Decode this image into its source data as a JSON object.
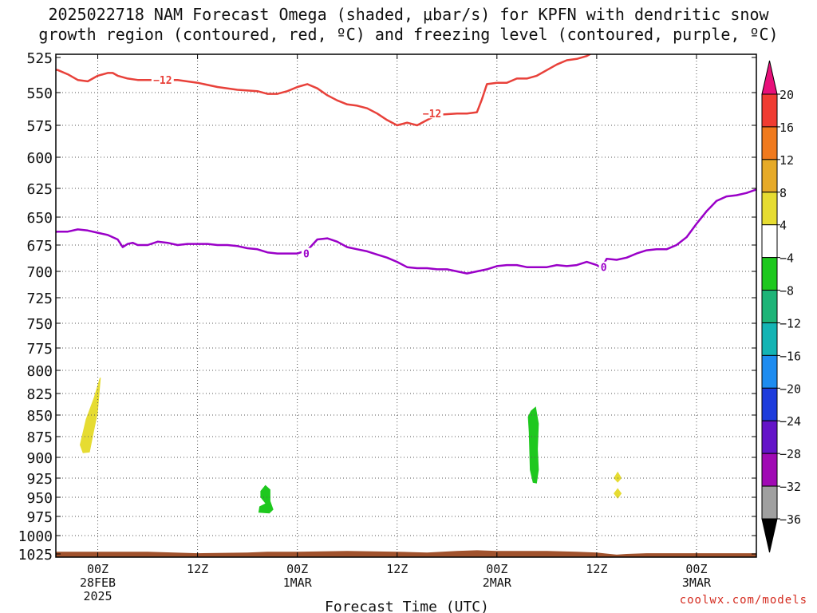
{
  "title_line1": "2025022718 NAM Forecast Omega (shaded, μbar/s) for KPFN with dendritic snow",
  "title_line2": "growth region (contoured, red, ºC) and freezing level (contoured, purple, ºC)",
  "watermark": "coolwx.com/models",
  "chart_data": {
    "type": "area",
    "title": "2025022718 NAM Forecast Omega (shaded, μbar/s) for KPFN with dendritic snow growth region (contoured, red, ºC) and freezing level (contoured, purple, ºC)",
    "xlabel": "Forecast Time (UTC)",
    "ylabel": "",
    "x_range_hours": [
      -4.2,
      66
    ],
    "y_axis": {
      "reversed": true,
      "range_mb": [
        525,
        1025
      ]
    },
    "y_ticks": [
      525,
      550,
      575,
      600,
      625,
      650,
      675,
      700,
      725,
      750,
      775,
      800,
      825,
      850,
      875,
      900,
      925,
      950,
      975,
      1000,
      1025
    ],
    "x_ticks": [
      {
        "hour": 0,
        "lines": [
          "00Z",
          "28FEB",
          "2025"
        ]
      },
      {
        "hour": 10,
        "lines": [
          "12Z"
        ]
      },
      {
        "hour": 20,
        "lines": [
          "00Z",
          "1MAR"
        ]
      },
      {
        "hour": 30,
        "lines": [
          "12Z"
        ]
      },
      {
        "hour": 40,
        "lines": [
          "00Z",
          "2MAR"
        ]
      },
      {
        "hour": 50,
        "lines": [
          "12Z"
        ]
      },
      {
        "hour": 60,
        "lines": [
          "00Z",
          "3MAR"
        ]
      }
    ],
    "grid": true,
    "colorbar": {
      "labels": [
        "20",
        "16",
        "12",
        "8",
        "4",
        "−4",
        "−8",
        "−12",
        "−16",
        "−20",
        "−24",
        "−28",
        "−32",
        "−36"
      ],
      "colors": [
        "#e8107a",
        "#f03c32",
        "#f07a1e",
        "#e6aa28",
        "#e6dc32",
        "#ffffff",
        "#1ec81e",
        "#1eb478",
        "#14b4b4",
        "#1e8cf0",
        "#1e3cdc",
        "#6414c8",
        "#a00ab4",
        "#a0a0a0",
        "#000000"
      ]
    },
    "contours": [
      {
        "color": "#e8413a",
        "label": "−12",
        "points": [
          [
            -5,
            533
          ],
          [
            -4,
            534
          ],
          [
            -3,
            537
          ],
          [
            -2,
            541
          ],
          [
            -1,
            542
          ],
          [
            0,
            538
          ],
          [
            1,
            536
          ],
          [
            1.5,
            536
          ],
          [
            2,
            538
          ],
          [
            3,
            540
          ],
          [
            4,
            541
          ],
          [
            6,
            541
          ],
          [
            8,
            541
          ],
          [
            10,
            543
          ],
          [
            12,
            546
          ],
          [
            14,
            548
          ],
          [
            16,
            549
          ],
          [
            17,
            551
          ],
          [
            18,
            551
          ],
          [
            19,
            549
          ],
          [
            20,
            546
          ],
          [
            21,
            544
          ],
          [
            22,
            547
          ],
          [
            23,
            552
          ],
          [
            24,
            556
          ],
          [
            25,
            559
          ],
          [
            26,
            560
          ],
          [
            27,
            562
          ],
          [
            28,
            566
          ],
          [
            29,
            571
          ],
          [
            30,
            575
          ],
          [
            31,
            573
          ],
          [
            32,
            575
          ],
          [
            33,
            571
          ],
          [
            34,
            567
          ],
          [
            36,
            566
          ],
          [
            37,
            566
          ],
          [
            38,
            565
          ],
          [
            38.5,
            555
          ],
          [
            39,
            544
          ],
          [
            40,
            543
          ],
          [
            41,
            543
          ],
          [
            42,
            540
          ],
          [
            43,
            540
          ],
          [
            44,
            538
          ],
          [
            45,
            534
          ],
          [
            46,
            530
          ],
          [
            47,
            527
          ],
          [
            48,
            526
          ],
          [
            49,
            524
          ],
          [
            50,
            520
          ],
          [
            51,
            516
          ],
          [
            52,
            512
          ],
          [
            53,
            508
          ],
          [
            54,
            505
          ]
        ]
      },
      {
        "color": "#9a00c8",
        "label": "0",
        "points": [
          [
            -5,
            664
          ],
          [
            -4,
            663
          ],
          [
            -3,
            663
          ],
          [
            -2,
            661
          ],
          [
            -1,
            662
          ],
          [
            0,
            664
          ],
          [
            1,
            666
          ],
          [
            2,
            670
          ],
          [
            2.5,
            677
          ],
          [
            3,
            674
          ],
          [
            3.5,
            673
          ],
          [
            4,
            675
          ],
          [
            5,
            675
          ],
          [
            6,
            672
          ],
          [
            7,
            673
          ],
          [
            8,
            675
          ],
          [
            9,
            674
          ],
          [
            10,
            674
          ],
          [
            11,
            674
          ],
          [
            12,
            675
          ],
          [
            13,
            675
          ],
          [
            14,
            676
          ],
          [
            15,
            678
          ],
          [
            16,
            679
          ],
          [
            17,
            682
          ],
          [
            18,
            683
          ],
          [
            19,
            683
          ],
          [
            20,
            683
          ],
          [
            21,
            680
          ],
          [
            22,
            670
          ],
          [
            23,
            669
          ],
          [
            24,
            672
          ],
          [
            25,
            677
          ],
          [
            26,
            679
          ],
          [
            27,
            681
          ],
          [
            28,
            684
          ],
          [
            29,
            687
          ],
          [
            30,
            691
          ],
          [
            31,
            696
          ],
          [
            32,
            697
          ],
          [
            33,
            697
          ],
          [
            34,
            698
          ],
          [
            35,
            698
          ],
          [
            36,
            700
          ],
          [
            37,
            702
          ],
          [
            38,
            700
          ],
          [
            39,
            698
          ],
          [
            40,
            695
          ],
          [
            41,
            694
          ],
          [
            42,
            694
          ],
          [
            43,
            696
          ],
          [
            44,
            696
          ],
          [
            45,
            696
          ],
          [
            46,
            694
          ],
          [
            47,
            695
          ],
          [
            48,
            694
          ],
          [
            49,
            691
          ],
          [
            50,
            694
          ],
          [
            50.5,
            697
          ],
          [
            51,
            688
          ],
          [
            52,
            689
          ],
          [
            53,
            687
          ],
          [
            54,
            683
          ],
          [
            55,
            680
          ],
          [
            56,
            679
          ],
          [
            57,
            679
          ],
          [
            58,
            675
          ],
          [
            59,
            668
          ],
          [
            60,
            656
          ],
          [
            61,
            645
          ],
          [
            62,
            636
          ],
          [
            63,
            632
          ],
          [
            64,
            631
          ],
          [
            65,
            629
          ],
          [
            66,
            626
          ]
        ]
      }
    ],
    "shaded_regions": [
      {
        "color": "#e6dc32",
        "value_range": [
          4,
          8
        ],
        "outline": [
          [
            -1.5,
            895
          ],
          [
            -0.8,
            894
          ],
          [
            -0.4,
            870
          ],
          [
            0,
            848
          ],
          [
            0.3,
            808
          ],
          [
            0.2,
            808
          ],
          [
            -0.4,
            830
          ],
          [
            -1.2,
            855
          ],
          [
            -1.8,
            885
          ]
        ]
      },
      {
        "color": "#1ec81e",
        "value_range": [
          -8,
          -4
        ],
        "outline": [
          [
            16.3,
            942
          ],
          [
            16.8,
            934
          ],
          [
            17.3,
            940
          ],
          [
            17.3,
            955
          ],
          [
            17.6,
            966
          ],
          [
            17.2,
            971
          ],
          [
            16.1,
            970
          ],
          [
            16.2,
            962
          ],
          [
            16.8,
            958
          ],
          [
            16.3,
            950
          ]
        ]
      },
      {
        "color": "#1ec81e",
        "value_range": [
          -8,
          -4
        ],
        "outline": [
          [
            43.4,
            845
          ],
          [
            43.9,
            840
          ],
          [
            44.2,
            860
          ],
          [
            44.1,
            890
          ],
          [
            44.2,
            915
          ],
          [
            44.0,
            932
          ],
          [
            43.6,
            931
          ],
          [
            43.3,
            915
          ],
          [
            43.2,
            870
          ],
          [
            43.1,
            852
          ]
        ]
      },
      {
        "color": "#e6dc32",
        "value_range": [
          4,
          8
        ],
        "outline": [
          [
            52.1,
            917
          ],
          [
            52.5,
            925
          ],
          [
            52.1,
            931
          ],
          [
            51.7,
            925
          ]
        ]
      },
      {
        "color": "#e6dc32",
        "value_range": [
          4,
          8
        ],
        "outline": [
          [
            52.1,
            938
          ],
          [
            52.5,
            945
          ],
          [
            52.1,
            952
          ],
          [
            51.7,
            945
          ]
        ]
      }
    ],
    "terrain": {
      "color": "#a0522d",
      "points": [
        [
          -5,
          1022
        ],
        [
          0,
          1022
        ],
        [
          5,
          1022
        ],
        [
          10,
          1024
        ],
        [
          15,
          1023
        ],
        [
          17,
          1022
        ],
        [
          20,
          1022
        ],
        [
          25,
          1021
        ],
        [
          30,
          1022
        ],
        [
          33,
          1023
        ],
        [
          36,
          1021
        ],
        [
          38,
          1020
        ],
        [
          40,
          1021
        ],
        [
          45,
          1021
        ],
        [
          48,
          1022
        ],
        [
          50,
          1023
        ],
        [
          52,
          1026
        ],
        [
          53,
          1025
        ],
        [
          55,
          1024
        ],
        [
          60,
          1024
        ],
        [
          66,
          1024
        ]
      ]
    }
  }
}
